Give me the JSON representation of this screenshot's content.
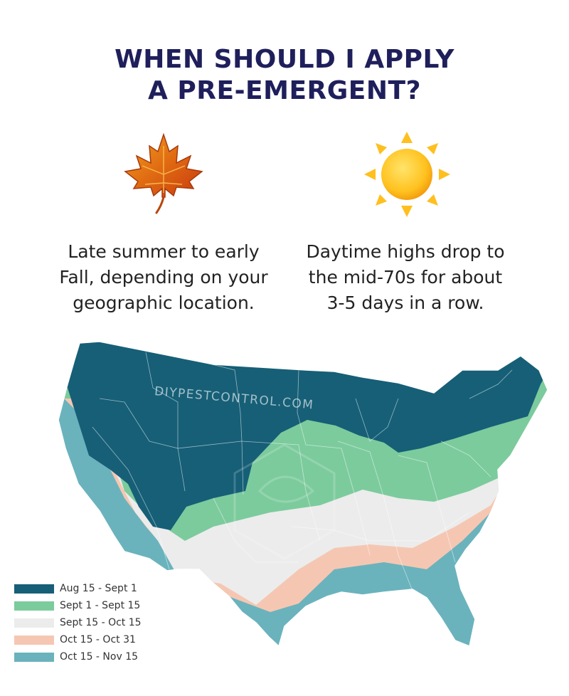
{
  "title": {
    "line1": "WHEN SHOULD I APPLY",
    "line2": "A PRE-EMERGENT?"
  },
  "icons": {
    "left": "maple-leaf-icon",
    "right": "sun-icon"
  },
  "captions": {
    "left": [
      "Late summer to early",
      "Fall, depending on your",
      "geographic location."
    ],
    "right": [
      "Daytime highs drop to",
      "the mid-70s for about",
      "3-5 days in a row."
    ]
  },
  "map": {
    "watermark": "DIYPESTCONTROL.COM"
  },
  "legend": [
    {
      "label": "Aug 15 - Sept 1",
      "color": "#165f77"
    },
    {
      "label": "Sept 1 - Sept 15",
      "color": "#7ccb9d"
    },
    {
      "label": "Sept 15 - Oct 15",
      "color": "#ececec"
    },
    {
      "label": "Oct 15 - Oct 31",
      "color": "#f5c7b2"
    },
    {
      "label": "Oct 15 - Nov 15",
      "color": "#6ab3bd"
    }
  ]
}
